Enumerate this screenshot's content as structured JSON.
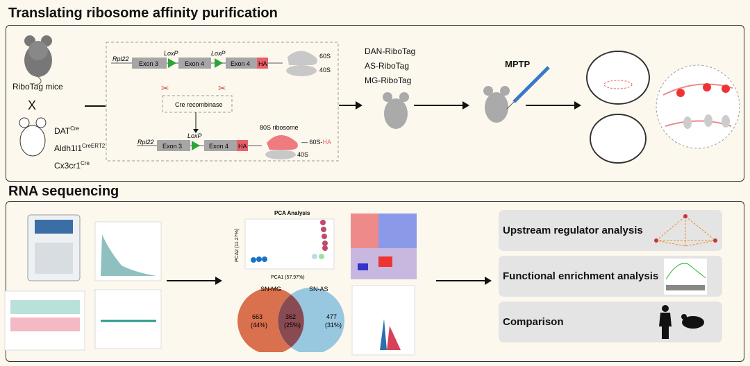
{
  "section1": {
    "title": "Translating ribosome affinity purification",
    "mouse_label": "RiboTag mice",
    "cross": "X",
    "drivers": [
      {
        "name": "DAT",
        "sup": "Cre"
      },
      {
        "name": "Aldh1l1",
        "sup": "CreERT2"
      },
      {
        "name": "Cx3cr1",
        "sup": "Cre"
      }
    ],
    "construct": {
      "gene": "Rpl22",
      "exon3": "Exon 3",
      "exon4": "Exon 4",
      "loxp": "LoxP",
      "ha": "HA",
      "s60": "60S",
      "s40": "40S",
      "cre": "Cre recombinase",
      "ribosome": "80S ribosome",
      "s60ha_a": "60S-",
      "s60ha_b": "HA"
    },
    "lines": [
      "DAN-RiboTag",
      "AS-RiboTag",
      "MG-RiboTag"
    ],
    "treatment": "MPTP"
  },
  "section2": {
    "title": "RNA sequencing",
    "pca": {
      "title": "PCA Analysis",
      "xlabel": "PCA1 (57.97%)",
      "ylabel": "PCA2 (11.27%)"
    },
    "venn": {
      "a": "SN-MG",
      "b": "SN-AS",
      "a_only": "663",
      "a_pct": "(44%)",
      "both": "362",
      "both_pct": "(25%)",
      "b_only": "477",
      "b_pct": "(31%)"
    },
    "analyses": [
      "Upstream regulator analysis",
      "Functional enrichment analysis",
      "Comparison"
    ]
  },
  "colors": {
    "ha": "#e8606a",
    "loxp": "#2aa53a",
    "exon": "#a6a6a6",
    "venn_a": "#d9714f",
    "venn_b": "#86bfdc"
  }
}
